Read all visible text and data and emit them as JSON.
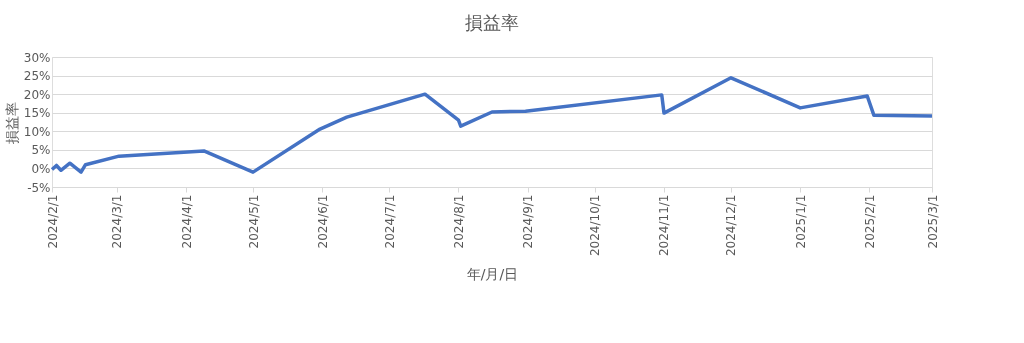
{
  "chart_data": {
    "type": "line",
    "title": "損益率",
    "xlabel": "年/月/日",
    "ylabel": "損益率",
    "x": [
      "2024-02-01",
      "2024-02-03",
      "2024-02-05",
      "2024-02-09",
      "2024-02-14",
      "2024-02-16",
      "2024-03-02",
      "2024-04-09",
      "2024-05-01",
      "2024-05-31",
      "2024-06-12",
      "2024-07-17",
      "2024-08-01",
      "2024-08-02",
      "2024-08-16",
      "2024-08-31",
      "2024-10-31",
      "2024-11-01",
      "2024-12-01",
      "2025-01-01",
      "2025-01-31",
      "2025-02-03",
      "2025-03-01"
    ],
    "series": [
      {
        "color": "#4472c4",
        "values": [
          -0.3,
          0.8,
          -0.5,
          1.4,
          -1.0,
          1.0,
          3.3,
          4.7,
          -1.0,
          10.6,
          13.8,
          20.0,
          13.0,
          11.4,
          15.2,
          15.4,
          19.8,
          14.9,
          24.4,
          16.3,
          19.5,
          14.3,
          14.1
        ]
      }
    ],
    "xlim": [
      "2024-02-01",
      "2025-03-01"
    ],
    "xticks": [
      {
        "value": "2024-02-01",
        "label": "2024/2/1"
      },
      {
        "value": "2024-03-01",
        "label": "2024/3/1"
      },
      {
        "value": "2024-04-01",
        "label": "2024/4/1"
      },
      {
        "value": "2024-05-01",
        "label": "2024/5/1"
      },
      {
        "value": "2024-06-01",
        "label": "2024/6/1"
      },
      {
        "value": "2024-07-01",
        "label": "2024/7/1"
      },
      {
        "value": "2024-08-01",
        "label": "2024/8/1"
      },
      {
        "value": "2024-09-01",
        "label": "2024/9/1"
      },
      {
        "value": "2024-10-01",
        "label": "2024/10/1"
      },
      {
        "value": "2024-11-01",
        "label": "2024/11/1"
      },
      {
        "value": "2024-12-01",
        "label": "2024/12/1"
      },
      {
        "value": "2025-01-01",
        "label": "2025/1/1"
      },
      {
        "value": "2025-02-01",
        "label": "2025/2/1"
      },
      {
        "value": "2025-03-01",
        "label": "2025/3/1"
      }
    ],
    "ylim": [
      -5,
      30
    ],
    "yticks": [
      {
        "value": -5,
        "label": "-5%"
      },
      {
        "value": 0,
        "label": "0%"
      },
      {
        "value": 5,
        "label": "5%"
      },
      {
        "value": 10,
        "label": "10%"
      },
      {
        "value": 15,
        "label": "15%"
      },
      {
        "value": 20,
        "label": "20%"
      },
      {
        "value": 25,
        "label": "25%"
      },
      {
        "value": 30,
        "label": "30%"
      }
    ],
    "grid": "y",
    "marker": "none",
    "line_style": "solid"
  }
}
